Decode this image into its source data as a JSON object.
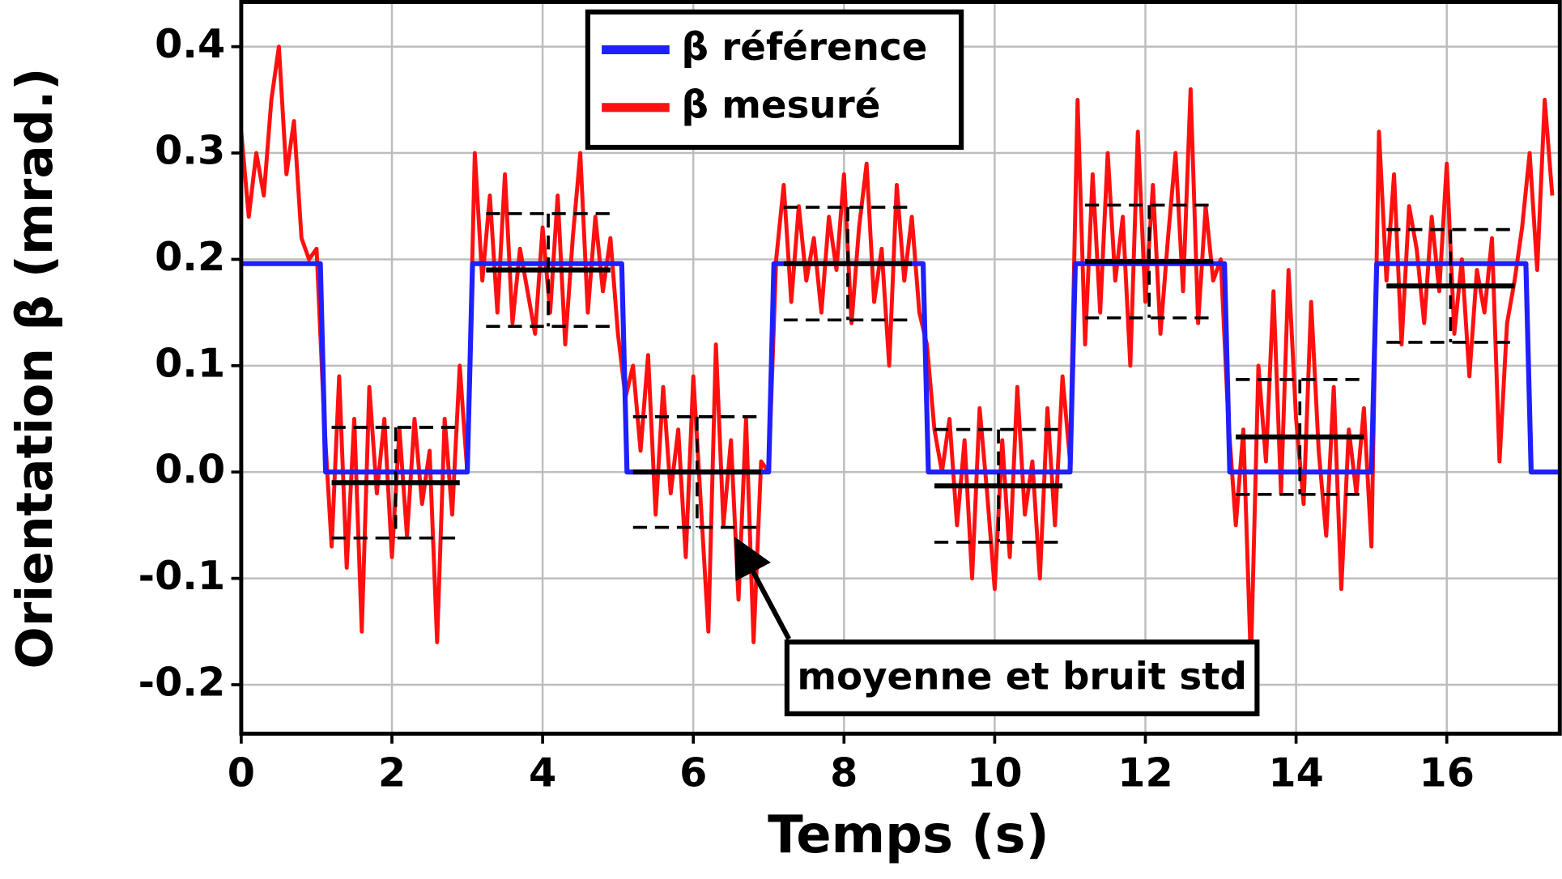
{
  "chart_data": {
    "type": "line",
    "xlabel": "Temps (s)",
    "ylabel": "Orientation β (mrad.)",
    "xlim": [
      0,
      17.5
    ],
    "ylim": [
      -0.246,
      0.442
    ],
    "xticks": [
      0,
      2,
      4,
      6,
      8,
      10,
      12,
      14,
      16
    ],
    "yticks": [
      -0.2,
      -0.1,
      {
        "value": 0,
        "label": "0.0"
      },
      0.1,
      0.2,
      0.3,
      0.4
    ],
    "grid": true,
    "legend": "upper center",
    "series": [
      {
        "name": "β référence",
        "color": "#1f1fff",
        "x": [
          0,
          1.05,
          1.12,
          3.0,
          3.07,
          5.05,
          5.12,
          7.0,
          7.07,
          9.05,
          9.12,
          11.0,
          11.07,
          13.05,
          13.12,
          15.0,
          15.07,
          17.05,
          17.12,
          17.5
        ],
        "values": [
          0.196,
          0.196,
          0,
          0,
          0.196,
          0.196,
          0,
          0,
          0.196,
          0.196,
          0,
          0,
          0.196,
          0.196,
          0,
          0,
          0.196,
          0.196,
          0,
          0
        ]
      },
      {
        "name": "β mesuré",
        "color": "#ff1010",
        "x": [
          0,
          0.1,
          0.2,
          0.3,
          0.4,
          0.5,
          0.6,
          0.7,
          0.8,
          0.9,
          1.0,
          1.1,
          1.2,
          1.3,
          1.4,
          1.5,
          1.6,
          1.7,
          1.8,
          1.9,
          2.0,
          2.1,
          2.2,
          2.3,
          2.4,
          2.5,
          2.6,
          2.7,
          2.8,
          2.9,
          3.0,
          3.1,
          3.2,
          3.3,
          3.4,
          3.5,
          3.6,
          3.7,
          3.8,
          3.9,
          4.0,
          4.1,
          4.2,
          4.3,
          4.4,
          4.5,
          4.6,
          4.7,
          4.8,
          4.9,
          5.0,
          5.1,
          5.2,
          5.3,
          5.4,
          5.5,
          5.6,
          5.7,
          5.8,
          5.9,
          6.0,
          6.1,
          6.2,
          6.3,
          6.4,
          6.5,
          6.6,
          6.7,
          6.8,
          6.9,
          7.0,
          7.1,
          7.2,
          7.3,
          7.4,
          7.5,
          7.6,
          7.7,
          7.8,
          7.9,
          8.0,
          8.1,
          8.2,
          8.3,
          8.4,
          8.5,
          8.6,
          8.7,
          8.8,
          8.9,
          9.0,
          9.1,
          9.2,
          9.3,
          9.4,
          9.5,
          9.6,
          9.7,
          9.8,
          9.9,
          10.0,
          10.1,
          10.2,
          10.3,
          10.4,
          10.5,
          10.6,
          10.7,
          10.8,
          10.9,
          11.0,
          11.1,
          11.2,
          11.3,
          11.4,
          11.5,
          11.6,
          11.7,
          11.8,
          11.9,
          12.0,
          12.1,
          12.2,
          12.3,
          12.4,
          12.5,
          12.6,
          12.7,
          12.8,
          12.9,
          13.0,
          13.1,
          13.2,
          13.3,
          13.4,
          13.5,
          13.6,
          13.7,
          13.8,
          13.9,
          14.0,
          14.1,
          14.2,
          14.3,
          14.4,
          14.5,
          14.6,
          14.7,
          14.8,
          14.9,
          15.0,
          15.1,
          15.2,
          15.3,
          15.4,
          15.5,
          15.6,
          15.7,
          15.8,
          15.9,
          16.0,
          16.1,
          16.2,
          16.3,
          16.4,
          16.5,
          16.6,
          16.7,
          16.8,
          16.9,
          17.0,
          17.1,
          17.2,
          17.3,
          17.4
        ],
        "values": [
          0.32,
          0.24,
          0.3,
          0.26,
          0.35,
          0.4,
          0.28,
          0.33,
          0.22,
          0.2,
          0.21,
          0.05,
          -0.07,
          0.09,
          -0.09,
          0.05,
          -0.15,
          0.08,
          -0.02,
          0.05,
          -0.08,
          0.04,
          -0.06,
          0.05,
          -0.03,
          0.02,
          -0.16,
          0.05,
          -0.04,
          0.1,
          0.0,
          0.3,
          0.18,
          0.26,
          0.15,
          0.28,
          0.14,
          0.21,
          0.17,
          0.13,
          0.23,
          0.15,
          0.26,
          0.12,
          0.22,
          0.3,
          0.15,
          0.24,
          0.17,
          0.22,
          0.13,
          0.07,
          0.1,
          0.02,
          0.11,
          -0.04,
          0.08,
          -0.02,
          0.04,
          -0.08,
          0.09,
          -0.03,
          -0.15,
          0.12,
          -0.05,
          0.03,
          -0.12,
          0.05,
          -0.16,
          0.01,
          0.0,
          0.2,
          0.27,
          0.16,
          0.25,
          0.18,
          0.22,
          0.15,
          0.24,
          0.19,
          0.28,
          0.14,
          0.23,
          0.29,
          0.16,
          0.21,
          0.1,
          0.27,
          0.18,
          0.24,
          0.15,
          0.12,
          0.04,
          0.0,
          0.05,
          -0.05,
          0.03,
          -0.1,
          0.06,
          -0.02,
          -0.11,
          0.03,
          -0.08,
          0.08,
          -0.04,
          0.01,
          -0.1,
          0.06,
          -0.05,
          0.09,
          0.01,
          0.35,
          0.12,
          0.28,
          0.15,
          0.3,
          0.18,
          0.24,
          0.1,
          0.32,
          0.16,
          0.27,
          0.13,
          0.22,
          0.3,
          0.17,
          0.36,
          0.14,
          0.25,
          0.18,
          0.2,
          0.05,
          -0.05,
          0.04,
          -0.18,
          0.1,
          0.01,
          0.17,
          -0.02,
          0.19,
          0.05,
          -0.03,
          0.16,
          0.02,
          -0.06,
          0.08,
          -0.11,
          0.04,
          -0.02,
          0.06,
          -0.07,
          0.32,
          0.18,
          0.28,
          0.12,
          0.25,
          0.21,
          0.14,
          0.24,
          0.17,
          0.29,
          0.13,
          0.2,
          0.09,
          0.19,
          0.15,
          0.22,
          0.01,
          0.14,
          0.18,
          0.23,
          0.3,
          0.19,
          0.35,
          0.26
        ]
      }
    ],
    "segments": [
      {
        "x": [
          1.2,
          2.9
        ],
        "mean": -0.01,
        "std": 0.052
      },
      {
        "x": [
          3.25,
          4.9
        ],
        "mean": 0.19,
        "std": 0.053
      },
      {
        "x": [
          5.2,
          6.9
        ],
        "mean": 0.0,
        "std": 0.052
      },
      {
        "x": [
          7.2,
          8.9
        ],
        "mean": 0.196,
        "std": 0.053
      },
      {
        "x": [
          9.2,
          10.9
        ],
        "mean": -0.013,
        "std": 0.053
      },
      {
        "x": [
          11.2,
          12.9
        ],
        "mean": 0.198,
        "std": 0.053
      },
      {
        "x": [
          13.2,
          14.9
        ],
        "mean": 0.033,
        "std": 0.054
      },
      {
        "x": [
          15.2,
          16.9
        ],
        "mean": 0.175,
        "std": 0.053
      }
    ],
    "annotation": "moyenne et bruit std"
  }
}
